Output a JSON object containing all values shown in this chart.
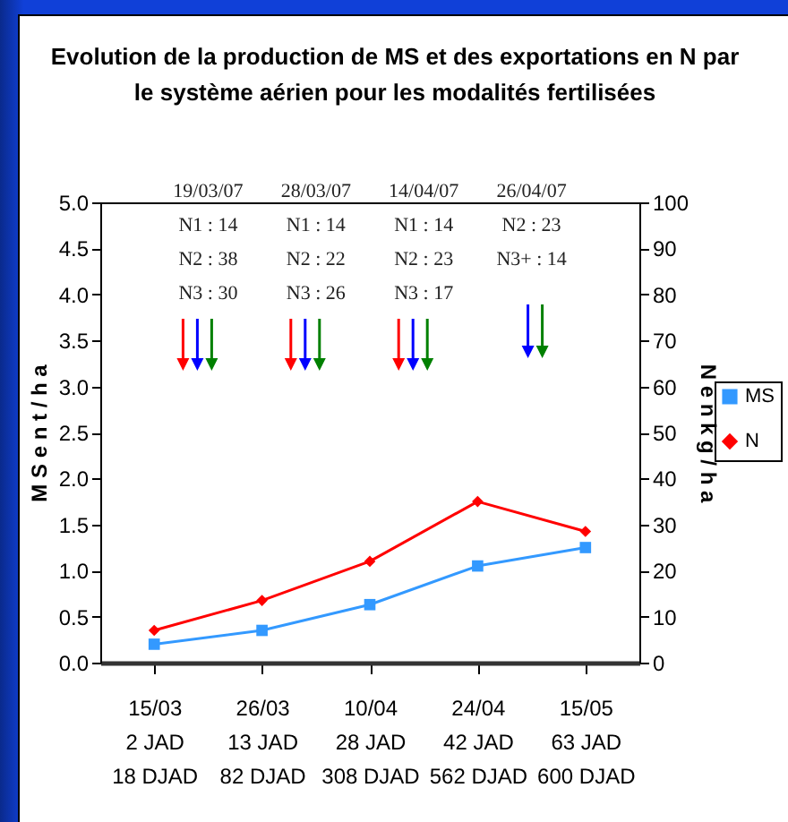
{
  "chart_data": {
    "type": "line",
    "title": "Evolution de la production de MS et des exportations en N par\nle système aérien pour les modalités fertilisées",
    "ylabel": "M S  e n  t / h a",
    "y2label": "N  e n  k g / h a",
    "categories": [
      "15/03\n2 JAD\n18 DJAD",
      "26/03\n13 JAD\n82 DJAD",
      "10/04\n28 JAD\n308 DJAD",
      "24/04\n42 JAD\n562 DJAD",
      "15/05\n63 JAD\n600 DJAD"
    ],
    "series": [
      {
        "name": "MS",
        "color": "#3399ff",
        "marker": "square",
        "values": [
          0.2,
          0.35,
          0.63,
          1.05,
          1.25
        ]
      },
      {
        "name": "N",
        "color": "#ff0000",
        "marker": "diamond",
        "axis": "y2",
        "values": [
          7,
          13.5,
          22,
          35,
          28.5
        ]
      }
    ],
    "ylim": [
      0,
      5
    ],
    "yticks": [
      {
        "value": 0,
        "label": "0.0"
      },
      {
        "value": 0.5,
        "label": "0.5"
      },
      {
        "value": 1,
        "label": "1.0"
      },
      {
        "value": 1.5,
        "label": "1.5"
      },
      {
        "value": 2,
        "label": "2.0"
      },
      {
        "value": 2.5,
        "label": "2.5"
      },
      {
        "value": 3,
        "label": "3.0"
      },
      {
        "value": 3.5,
        "label": "3.5"
      },
      {
        "value": 4,
        "label": "4.0"
      },
      {
        "value": 4.5,
        "label": "4.5"
      },
      {
        "value": 5,
        "label": "5.0"
      }
    ],
    "y2lim": [
      0,
      100
    ],
    "y2ticks": [
      0,
      10,
      20,
      30,
      40,
      50,
      60,
      70,
      80,
      90,
      100
    ],
    "annotations": [
      "19/03/07\nN1 :  14\nN2 :  38\nN3 :  30",
      "28/03/07\nN1 :  14\nN2 :  22\nN3 :  26",
      "14/04/07\nN1 :  14\nN2 :  23\nN3 :  17",
      "26/04/07\nN2 :  23\nN3+  :  14"
    ],
    "grid": false,
    "legend": "right"
  }
}
